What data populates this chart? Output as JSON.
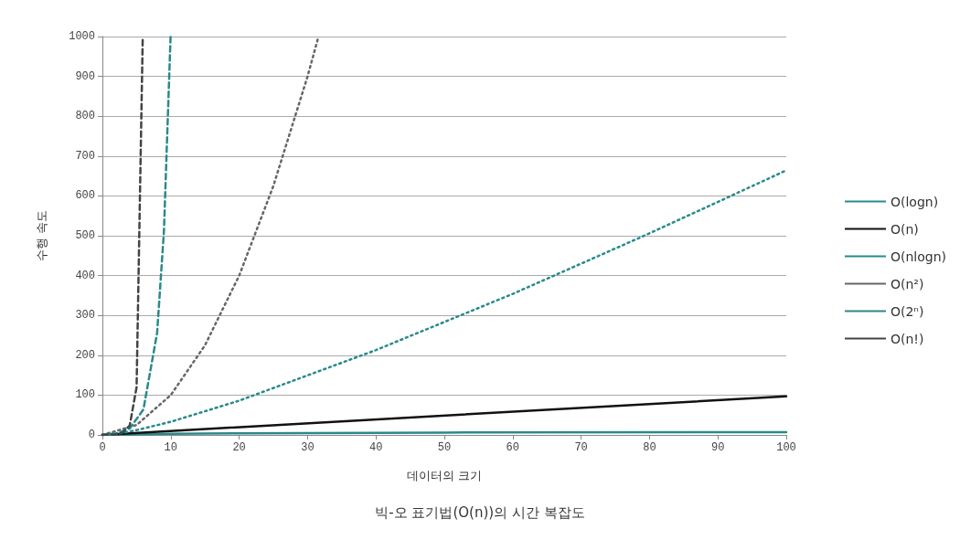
{
  "chart_data": {
    "type": "line",
    "title": "빅-오 표기법(O(n))의 시간 복잡도",
    "xlabel": "데이터의 크기",
    "ylabel": "수행 속도",
    "xlim": [
      0,
      100
    ],
    "xticks": [
      0,
      10,
      20,
      30,
      40,
      50,
      60,
      70,
      80,
      90,
      100
    ],
    "ylim": [
      0,
      1000
    ],
    "yticks": [
      0,
      100,
      200,
      300,
      400,
      500,
      600,
      700,
      800,
      900,
      1000
    ],
    "grid": "y",
    "legend": "right",
    "marker": "none",
    "series": [
      {
        "name": "O(logn)",
        "color": "#2a8a8a",
        "line_style": "solid",
        "x": [
          1,
          10,
          20,
          50,
          100
        ],
        "values": [
          0,
          3,
          4,
          6,
          7
        ]
      },
      {
        "name": "O(n)",
        "color": "#111111",
        "line_style": "solid",
        "x": [
          0,
          100
        ],
        "values": [
          0,
          97
        ]
      },
      {
        "name": "O(nlogn)",
        "color": "#2a8a8a",
        "line_style": "dotted",
        "x": [
          1,
          2,
          5,
          10,
          20,
          40,
          60,
          80,
          100
        ],
        "values": [
          0,
          2,
          12,
          33,
          86,
          213,
          354,
          506,
          664
        ]
      },
      {
        "name": "O(n²)",
        "color": "#666666",
        "line_style": "dotted",
        "x": [
          0,
          5,
          10,
          15,
          20,
          25,
          30,
          31.6
        ],
        "values": [
          0,
          25,
          100,
          225,
          400,
          625,
          900,
          1000
        ]
      },
      {
        "name": "O(2ⁿ)",
        "color": "#2a8a8a",
        "line_style": "dashed",
        "x": [
          0,
          2,
          4,
          6,
          8,
          9,
          9.97
        ],
        "values": [
          1,
          4,
          16,
          64,
          256,
          512,
          1000
        ]
      },
      {
        "name": "O(n!)",
        "color": "#444444",
        "line_style": "dashed",
        "x": [
          0,
          2,
          3,
          4,
          5,
          5.9
        ],
        "values": [
          0,
          2,
          6,
          24,
          120,
          1000
        ]
      }
    ]
  }
}
